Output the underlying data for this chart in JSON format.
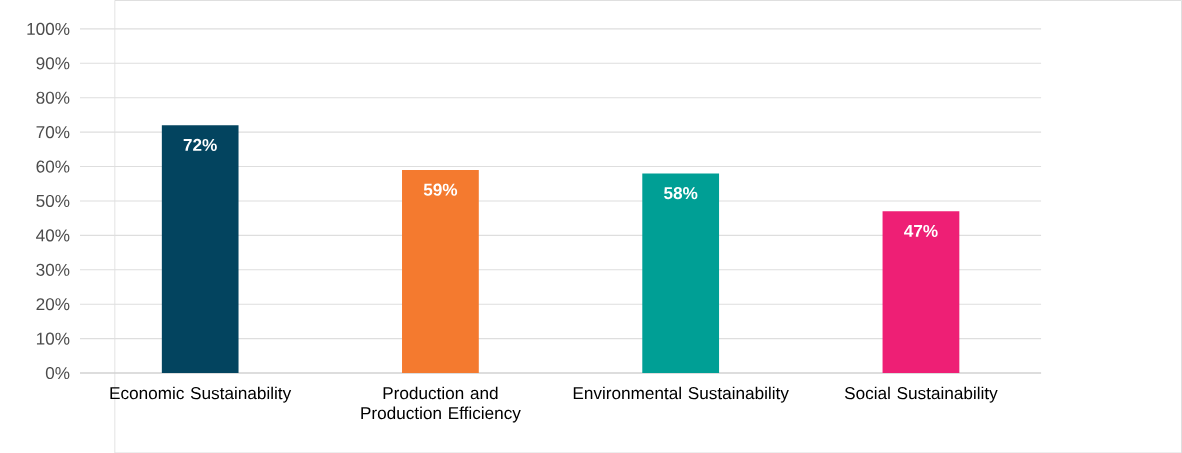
{
  "chart_data": {
    "type": "bar",
    "categories": [
      "Economic Sustainability",
      "Production and Production Efficiency",
      "Environmental Sustainability",
      "Social Sustainability"
    ],
    "values": [
      72,
      59,
      58,
      47
    ],
    "colors": [
      "#03445f",
      "#f47a2f",
      "#009f95",
      "#ee1f75"
    ],
    "value_labels": [
      "72%",
      "59%",
      "58%",
      "47%"
    ],
    "ylim": [
      0,
      100
    ],
    "yticks": [
      {
        "value": 0,
        "label": "0%"
      },
      {
        "value": 10,
        "label": "10%"
      },
      {
        "value": 20,
        "label": "20%"
      },
      {
        "value": 30,
        "label": "30%"
      },
      {
        "value": 40,
        "label": "40%"
      },
      {
        "value": 50,
        "label": "50%"
      },
      {
        "value": 60,
        "label": "60%"
      },
      {
        "value": 70,
        "label": "70%"
      },
      {
        "value": 80,
        "label": "80%"
      },
      {
        "value": 90,
        "label": "90%"
      },
      {
        "value": 100,
        "label": "100%"
      }
    ],
    "grid": "y"
  }
}
